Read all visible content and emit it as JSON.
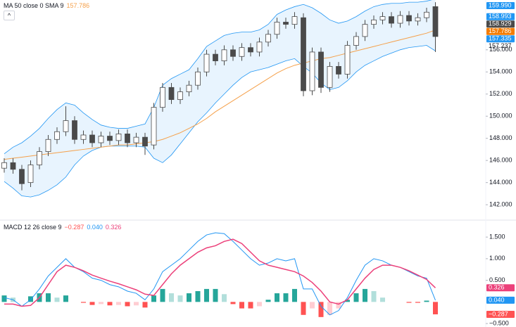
{
  "chart_data": [
    {
      "type": "candlestick",
      "legend": "MA 50 close 0 SMA 9",
      "ma_value": 157.786,
      "up_color": "#ffffff",
      "down_color": "#4a4a4a",
      "wick_color": "#4a4a4a",
      "band_color": "#2196f3",
      "ma_color": "#f5a04a",
      "open": [
        145.3,
        145.8,
        145.2,
        144.0,
        145.6,
        146.8,
        147.9,
        148.6,
        149.6,
        147.9,
        148.3,
        147.6,
        148.2,
        147.8,
        148.4,
        147.6,
        148.1,
        147.4,
        150.8,
        152.6,
        151.5,
        152.2,
        152.8,
        154.0,
        155.6,
        155.0,
        156.0,
        155.4,
        156.2,
        155.8,
        156.7,
        157.4,
        158.5,
        158.3,
        158.9,
        152.3,
        155.8,
        152.6,
        154.5,
        153.8,
        156.4,
        157.2,
        158.3,
        158.7,
        159.0,
        158.4,
        159.1,
        158.6,
        158.9,
        159.9
      ],
      "high": [
        146.2,
        146.2,
        145.6,
        146.0,
        147.2,
        148.3,
        149.0,
        150.9,
        150.0,
        148.7,
        148.7,
        148.6,
        148.6,
        148.8,
        148.8,
        148.5,
        148.5,
        151.2,
        153.0,
        153.0,
        152.6,
        153.2,
        154.4,
        156.0,
        156.0,
        156.4,
        156.4,
        156.6,
        156.6,
        157.1,
        157.8,
        158.9,
        158.9,
        159.4,
        159.3,
        156.2,
        156.2,
        154.9,
        154.9,
        156.8,
        157.6,
        158.7,
        159.1,
        159.4,
        159.4,
        159.5,
        159.5,
        159.3,
        159.8,
        160.3
      ],
      "low": [
        144.9,
        144.8,
        143.3,
        143.6,
        145.2,
        146.4,
        147.5,
        148.2,
        147.5,
        147.5,
        147.2,
        147.2,
        147.4,
        147.4,
        147.2,
        147.2,
        146.5,
        147.0,
        150.4,
        151.1,
        151.1,
        151.8,
        152.4,
        153.6,
        154.6,
        154.6,
        155.0,
        155.0,
        155.4,
        155.4,
        156.3,
        157.0,
        157.9,
        157.9,
        151.8,
        151.9,
        152.1,
        152.2,
        153.4,
        153.4,
        156.0,
        156.8,
        157.9,
        158.3,
        158.0,
        158.0,
        158.2,
        158.2,
        158.5,
        155.8
      ],
      "close": [
        145.8,
        145.2,
        143.9,
        145.6,
        146.8,
        147.9,
        148.6,
        149.6,
        147.9,
        148.3,
        147.6,
        148.2,
        147.8,
        148.4,
        147.6,
        148.1,
        147.3,
        150.8,
        152.6,
        151.5,
        152.2,
        152.8,
        154.0,
        155.6,
        155.0,
        156.0,
        155.4,
        156.2,
        155.8,
        156.7,
        157.4,
        158.5,
        158.3,
        159.0,
        152.3,
        155.8,
        152.6,
        154.5,
        153.8,
        156.4,
        157.2,
        158.3,
        158.7,
        159.0,
        158.4,
        159.1,
        158.6,
        158.9,
        159.4,
        157.2
      ],
      "upper": [
        146.6,
        147.2,
        147.6,
        148.2,
        148.9,
        149.8,
        150.6,
        151.2,
        151.0,
        150.3,
        149.7,
        149.2,
        149.0,
        148.9,
        148.9,
        149.1,
        149.3,
        150.8,
        152.8,
        153.4,
        153.8,
        154.2,
        155.2,
        156.3,
        156.8,
        157.3,
        157.5,
        157.6,
        157.6,
        157.8,
        158.3,
        159.2,
        159.6,
        159.9,
        160.1,
        159.8,
        159.3,
        158.7,
        158.4,
        158.6,
        159.0,
        159.5,
        159.9,
        160.1,
        160.2,
        160.2,
        160.3,
        160.3,
        160.4,
        160.6
      ],
      "lower": [
        144.1,
        143.5,
        142.8,
        142.7,
        142.9,
        143.3,
        143.8,
        144.5,
        145.6,
        146.4,
        146.9,
        147.2,
        147.3,
        147.3,
        147.3,
        147.3,
        147.2,
        146.2,
        145.8,
        146.5,
        147.5,
        148.5,
        149.5,
        150.3,
        151.2,
        152.0,
        152.8,
        153.5,
        154.0,
        154.2,
        154.4,
        154.7,
        155.0,
        155.2,
        154.5,
        153.9,
        153.0,
        152.4,
        152.6,
        153.2,
        154.0,
        154.6,
        155.0,
        155.4,
        155.7,
        156.0,
        156.2,
        156.3,
        156.4,
        155.9
      ],
      "ma": [
        146.1,
        146.2,
        146.3,
        146.4,
        146.5,
        146.6,
        146.7,
        146.8,
        146.9,
        147.0,
        147.1,
        147.2,
        147.3,
        147.4,
        147.4,
        147.5,
        147.6,
        147.7,
        147.9,
        148.2,
        148.5,
        148.9,
        149.3,
        149.8,
        150.4,
        150.9,
        151.4,
        151.9,
        152.4,
        152.9,
        153.4,
        153.9,
        154.3,
        154.6,
        154.8,
        155.0,
        155.2,
        155.3,
        155.5,
        155.7,
        155.9,
        156.1,
        156.3,
        156.5,
        156.7,
        156.9,
        157.1,
        157.3,
        157.5,
        157.786
      ],
      "ylim": [
        140.8,
        160.5
      ],
      "yticks": [
        {
          "value": 142,
          "label": "142.000"
        },
        {
          "value": 144,
          "label": "144.000"
        },
        {
          "value": 146,
          "label": "146.000"
        },
        {
          "value": 148,
          "label": "148.000"
        },
        {
          "value": 150,
          "label": "150.000"
        },
        {
          "value": 152,
          "label": "152.000"
        },
        {
          "value": 154,
          "label": "154.000"
        },
        {
          "value": 156,
          "label": "156.000"
        }
      ],
      "price_labels": [
        {
          "value": 159.99,
          "label": "159.990",
          "color": "#2196f3"
        },
        {
          "value": 158.993,
          "color": "#2196f3"
        },
        {
          "value": 158.929,
          "color": "#4a4a4a"
        },
        {
          "value": 157.786,
          "color": "#f57c00"
        },
        {
          "value": 157.335,
          "color": "#2196f3"
        }
      ],
      "last_price": 157.237
    },
    {
      "type": "macd",
      "legend": "MACD 12 26 close 9",
      "hist_value": {
        "value": -0.287,
        "label": "−0.287"
      },
      "macd_value": {
        "value": 0.04,
        "label": "0.040"
      },
      "signal_value": 0.326,
      "macd_color": "#2196f3",
      "signal_color": "#ec407a",
      "hist_colors": [
        "#26a69a",
        "#b2dfdb",
        "#ff5252",
        "#ffcdd2"
      ],
      "hist": [
        0.15,
        0.1,
        0.0,
        0.13,
        0.2,
        0.2,
        0.1,
        0.15,
        0.0,
        -0.02,
        -0.07,
        -0.05,
        -0.08,
        -0.07,
        -0.1,
        -0.08,
        -0.13,
        0.15,
        0.3,
        0.2,
        0.15,
        0.2,
        0.25,
        0.3,
        0.3,
        0.18,
        -0.05,
        -0.15,
        -0.15,
        -0.1,
        0.05,
        0.2,
        0.2,
        0.3,
        -0.3,
        -0.15,
        -0.35,
        -0.3,
        -0.15,
        0.05,
        0.2,
        0.3,
        0.25,
        0.1,
        0.0,
        0.0,
        -0.02,
        -0.02,
        0.03,
        -0.287
      ],
      "macd": [
        0.1,
        0.05,
        -0.1,
        0.05,
        0.3,
        0.6,
        0.8,
        1.0,
        0.8,
        0.7,
        0.55,
        0.5,
        0.4,
        0.35,
        0.25,
        0.2,
        0.05,
        0.3,
        0.7,
        0.85,
        1.0,
        1.2,
        1.4,
        1.55,
        1.6,
        1.58,
        1.4,
        1.2,
        1.0,
        0.85,
        0.9,
        1.0,
        0.95,
        1.0,
        0.3,
        0.3,
        -0.1,
        -0.3,
        -0.2,
        0.1,
        0.5,
        0.85,
        1.0,
        0.95,
        0.85,
        0.8,
        0.7,
        0.6,
        0.55,
        0.04
      ],
      "signal": [
        -0.05,
        -0.05,
        -0.1,
        -0.08,
        0.1,
        0.4,
        0.7,
        0.85,
        0.8,
        0.72,
        0.62,
        0.55,
        0.48,
        0.42,
        0.35,
        0.28,
        0.18,
        0.15,
        0.4,
        0.65,
        0.85,
        1.0,
        1.15,
        1.25,
        1.3,
        1.4,
        1.45,
        1.35,
        1.15,
        0.95,
        0.85,
        0.8,
        0.75,
        0.7,
        0.6,
        0.45,
        0.25,
        0.0,
        -0.05,
        0.05,
        0.3,
        0.55,
        0.75,
        0.85,
        0.85,
        0.8,
        0.72,
        0.62,
        0.52,
        0.326
      ],
      "ylim": [
        -0.58,
        1.86
      ],
      "yticks": [
        {
          "value": -0.5,
          "label": "−0.500"
        },
        {
          "value": 0.5,
          "label": "0.500"
        },
        {
          "value": 1,
          "label": "1.000"
        },
        {
          "value": 1.5,
          "label": "1.500"
        }
      ]
    }
  ]
}
